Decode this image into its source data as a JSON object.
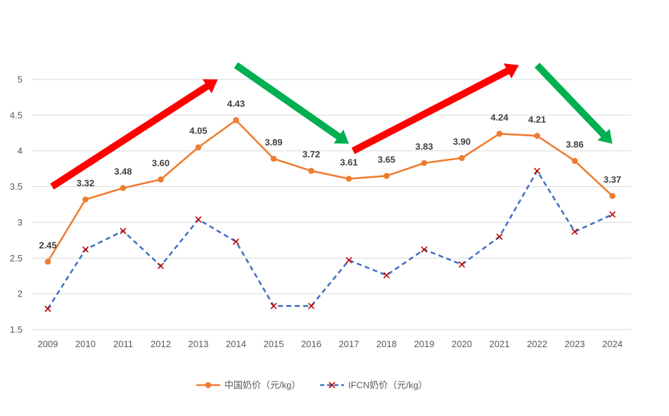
{
  "chart_data": {
    "type": "line",
    "title": "",
    "xlabel": "",
    "ylabel": "",
    "categories": [
      "2009",
      "2010",
      "2011",
      "2012",
      "2013",
      "2014",
      "2015",
      "2016",
      "2017",
      "2018",
      "2019",
      "2020",
      "2021",
      "2022",
      "2023",
      "2024"
    ],
    "ylim": [
      1.5,
      5
    ],
    "yticks": [
      "1.5",
      "2",
      "2.5",
      "3",
      "3.5",
      "4",
      "4.5",
      "5"
    ],
    "grid": true,
    "legend_position": "bottom",
    "series": [
      {
        "name": "中国奶价（元/kg）",
        "color": "#ED7D31",
        "style": "solid",
        "marker": "circle",
        "values": [
          2.45,
          3.32,
          3.48,
          3.6,
          4.05,
          4.43,
          3.89,
          3.72,
          3.61,
          3.65,
          3.83,
          3.9,
          4.24,
          4.21,
          3.86,
          3.37
        ],
        "labels": [
          "2.45",
          "3.32",
          "3.48",
          "3.60",
          "4.05",
          "4.43",
          "3.89",
          "3.72",
          "3.61",
          "3.65",
          "3.83",
          "3.90",
          "4.24",
          "4.21",
          "3.86",
          "3.37"
        ]
      },
      {
        "name": "IFCN奶价（元/kg）",
        "color": "#4472C4",
        "marker_color": "#C00000",
        "style": "dashed",
        "marker": "x",
        "values": [
          1.79,
          2.62,
          2.88,
          2.39,
          3.04,
          2.73,
          1.83,
          1.83,
          2.47,
          2.26,
          2.62,
          2.41,
          2.8,
          3.72,
          2.87,
          3.11
        ]
      }
    ],
    "annotations": [
      {
        "type": "arrow",
        "direction": "up",
        "color": "#FF0000",
        "from": [
          "2009",
          3.5
        ],
        "to": [
          "2014",
          5.0
        ]
      },
      {
        "type": "arrow",
        "direction": "down",
        "color": "#00B050",
        "from": [
          "2014",
          5.2
        ],
        "to": [
          "2017",
          4.1
        ]
      },
      {
        "type": "arrow",
        "direction": "up",
        "color": "#FF0000",
        "from": [
          "2017",
          4.0
        ],
        "to": [
          "2022",
          5.2
        ]
      },
      {
        "type": "arrow",
        "direction": "down",
        "color": "#00B050",
        "from": [
          "2022",
          5.2
        ],
        "to": [
          "2024",
          4.1
        ]
      }
    ]
  }
}
